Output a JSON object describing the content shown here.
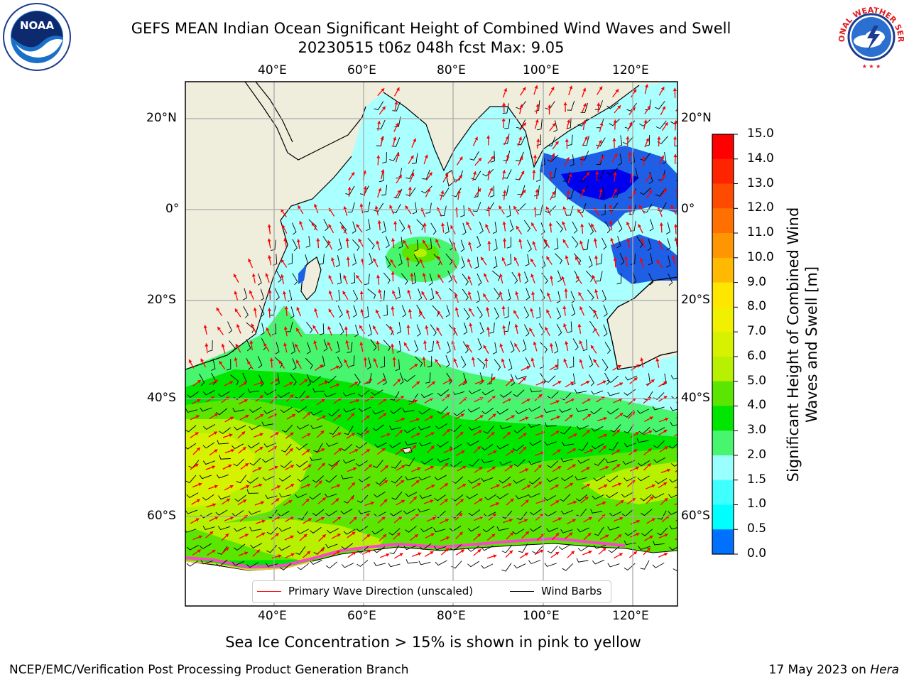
{
  "title": {
    "line1": "GEFS MEAN Indian Ocean Significant Height of Combined Wind Waves and Swell",
    "line2": "20230515 t06z 048h fcst   Max: 9.05"
  },
  "axes": {
    "lon_ticks": [
      "40°E",
      "60°E",
      "80°E",
      "100°E",
      "120°E"
    ],
    "lat_ticks": [
      "20°N",
      "0°",
      "20°S",
      "40°S",
      "60°S"
    ]
  },
  "colorbar": {
    "title": "Significant Height of Combined Wind Waves and Swell [m]",
    "labels": [
      "15.0",
      "14.0",
      "13.0",
      "12.0",
      "11.0",
      "10.0",
      "9.0",
      "8.0",
      "7.0",
      "6.0",
      "5.0",
      "4.0",
      "3.0",
      "2.0",
      "1.5",
      "1.0",
      "0.5",
      "0.0"
    ],
    "colors": [
      "#ff0000",
      "#ff2400",
      "#ff4b00",
      "#ff7000",
      "#ff9500",
      "#ffb900",
      "#ffe600",
      "#f0f000",
      "#d7f200",
      "#b7f000",
      "#5ae600",
      "#00e600",
      "#48f56e",
      "#9affff",
      "#40ffff",
      "#00ffff",
      "#0070ff",
      "#0000ff"
    ]
  },
  "legend": {
    "wave_label": "Primary Wave Direction (unscaled)",
    "barb_label": "Wind Barbs",
    "wave_color": "#ff0000",
    "barb_color": "#000000"
  },
  "logos": {
    "noaa_text": "NOAA",
    "nws_text": "NATIONAL WEATHER SERVICE"
  },
  "footer": {
    "note": "Sea Ice Concentration > 15% is shown in pink to yellow",
    "left": "NCEP/EMC/Verification Post Processing Product Generation Branch",
    "right_date": "17 May 2023 on ",
    "right_host": "Hera"
  }
}
